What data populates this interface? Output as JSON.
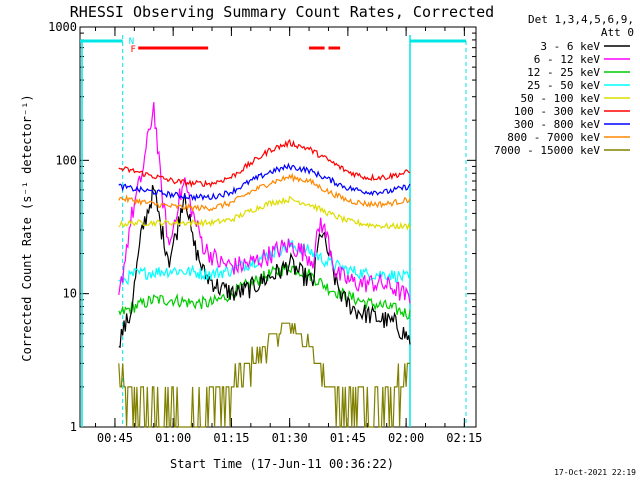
{
  "chart_data": {
    "type": "line",
    "title": "RHESSI Observing Summary Count Rates, Corrected",
    "xlabel": "Start Time (17-Jun-11 00:36:22)",
    "ylabel": "Corrected Count Rate (s⁻¹ detector⁻¹)",
    "yscale": "log",
    "ylim": [
      1,
      1000
    ],
    "xlim": [
      "00:36",
      "02:18"
    ],
    "x_ticks": [
      "00:45",
      "01:00",
      "01:15",
      "01:30",
      "01:45",
      "02:00",
      "02:15"
    ],
    "y_ticks": [
      "1",
      "10",
      "100",
      "1000"
    ],
    "grid": false,
    "timestamp": "17-Oct-2021 22:19",
    "legend": {
      "placement": "right",
      "header": [
        "Det 1,3,4,5,6,9,",
        "Att 0"
      ]
    },
    "night_markers": [
      {
        "label": "N",
        "time": "00:47",
        "color": "#00e5e5"
      },
      {
        "label": "",
        "time": "02:01",
        "color": "#00e5e5"
      }
    ],
    "flag_label": "F",
    "flag_bars": [
      {
        "start": "00:51",
        "end": "01:09"
      },
      {
        "start": "01:35",
        "end": "01:39"
      },
      {
        "start": "01:40",
        "end": "01:43"
      }
    ],
    "series": [
      {
        "name": "3 - 6 keV",
        "color": "#000000",
        "times": [
          "00:46",
          "00:49",
          "00:52",
          "00:55",
          "00:57",
          "00:59",
          "01:01",
          "01:03",
          "01:05",
          "01:08",
          "01:12",
          "01:16",
          "01:20",
          "01:24",
          "01:28",
          "01:30",
          "01:33",
          "01:36",
          "01:38",
          "01:40",
          "01:42",
          "01:44",
          "01:47",
          "01:50",
          "01:53",
          "01:57",
          "02:01"
        ],
        "values": [
          4.5,
          7,
          30,
          60,
          30,
          18,
          30,
          60,
          25,
          14,
          11,
          10,
          11,
          13,
          15,
          17,
          14,
          12,
          30,
          20,
          12,
          9,
          7.5,
          7,
          6.5,
          6,
          4.5
        ]
      },
      {
        "name": "6 - 12 keV",
        "color": "#ff00ff",
        "times": [
          "00:46",
          "00:49",
          "00:52",
          "00:55",
          "00:57",
          "00:59",
          "01:01",
          "01:03",
          "01:05",
          "01:08",
          "01:12",
          "01:16",
          "01:20",
          "01:24",
          "01:28",
          "01:30",
          "01:33",
          "01:36",
          "01:38",
          "01:40",
          "01:42",
          "01:44",
          "01:47",
          "01:50",
          "01:53",
          "01:57",
          "02:01"
        ],
        "values": [
          9,
          35,
          80,
          260,
          60,
          22,
          45,
          70,
          40,
          22,
          17,
          16,
          17,
          19,
          22,
          23,
          21,
          18,
          35,
          25,
          14,
          13,
          12,
          12,
          12,
          11,
          9
        ]
      },
      {
        "name": "12 - 25 keV",
        "color": "#00cc00",
        "times": [
          "00:46",
          "00:50",
          "00:55",
          "01:00",
          "01:05",
          "01:10",
          "01:15",
          "01:20",
          "01:25",
          "01:30",
          "01:35",
          "01:40",
          "01:45",
          "01:50",
          "01:55",
          "02:01"
        ],
        "values": [
          7,
          8,
          9,
          9,
          8.5,
          8.5,
          10,
          12,
          14,
          16,
          14,
          11,
          9.5,
          8.5,
          8,
          7
        ]
      },
      {
        "name": "25 - 50 keV",
        "color": "#00ffff",
        "times": [
          "00:46",
          "00:50",
          "00:55",
          "01:00",
          "01:05",
          "01:10",
          "01:15",
          "01:20",
          "01:25",
          "01:30",
          "01:35",
          "01:40",
          "01:45",
          "01:50",
          "01:55",
          "02:01"
        ],
        "values": [
          12,
          14,
          14.5,
          15,
          14.5,
          14,
          15,
          17,
          20,
          23,
          21,
          17,
          15,
          14,
          14,
          13
        ]
      },
      {
        "name": "50 - 100 keV",
        "color": "#dddd00",
        "times": [
          "00:46",
          "00:50",
          "00:55",
          "01:00",
          "01:05",
          "01:10",
          "01:15",
          "01:20",
          "01:25",
          "01:30",
          "01:35",
          "01:40",
          "01:45",
          "01:50",
          "01:55",
          "02:01"
        ],
        "values": [
          33,
          34,
          34,
          34,
          34,
          34,
          36,
          42,
          48,
          51,
          47,
          40,
          35,
          33,
          32,
          32
        ]
      },
      {
        "name": "100 - 300 keV",
        "color": "#ff0000",
        "times": [
          "00:46",
          "00:50",
          "00:55",
          "01:00",
          "01:05",
          "01:10",
          "01:15",
          "01:20",
          "01:25",
          "01:30",
          "01:35",
          "01:40",
          "01:45",
          "01:50",
          "01:55",
          "02:01"
        ],
        "values": [
          87,
          83,
          76,
          70,
          67,
          67,
          75,
          95,
          120,
          135,
          122,
          100,
          82,
          74,
          75,
          82
        ]
      },
      {
        "name": "300 - 800 keV",
        "color": "#0000ff",
        "times": [
          "00:46",
          "00:50",
          "00:55",
          "01:00",
          "01:05",
          "01:10",
          "01:15",
          "01:20",
          "01:25",
          "01:30",
          "01:35",
          "01:40",
          "01:45",
          "01:50",
          "01:55",
          "02:01"
        ],
        "values": [
          64,
          61,
          58,
          55,
          53,
          53,
          58,
          70,
          82,
          90,
          84,
          72,
          62,
          58,
          58,
          64
        ]
      },
      {
        "name": "800 - 7000 keV",
        "color": "#ff8800",
        "times": [
          "00:46",
          "00:50",
          "00:55",
          "01:00",
          "01:05",
          "01:10",
          "01:15",
          "01:20",
          "01:25",
          "01:30",
          "01:35",
          "01:40",
          "01:45",
          "01:50",
          "01:55",
          "02:01"
        ],
        "values": [
          52,
          50,
          47,
          45,
          44,
          44,
          48,
          58,
          68,
          75,
          70,
          58,
          50,
          47,
          47,
          51
        ]
      },
      {
        "name": "7000 - 15000 keV",
        "color": "#808000",
        "times": [
          "00:46",
          "00:50",
          "00:55",
          "01:00",
          "01:05",
          "01:10",
          "01:15",
          "01:20",
          "01:25",
          "01:30",
          "01:35",
          "01:40",
          "01:45",
          "01:50",
          "01:55",
          "02:01"
        ],
        "values": [
          2.5,
          1.5,
          1.5,
          1.2,
          1.2,
          1.5,
          2,
          3,
          4.5,
          6,
          4,
          2.2,
          1.5,
          1.5,
          1.5,
          2.5
        ]
      }
    ]
  }
}
